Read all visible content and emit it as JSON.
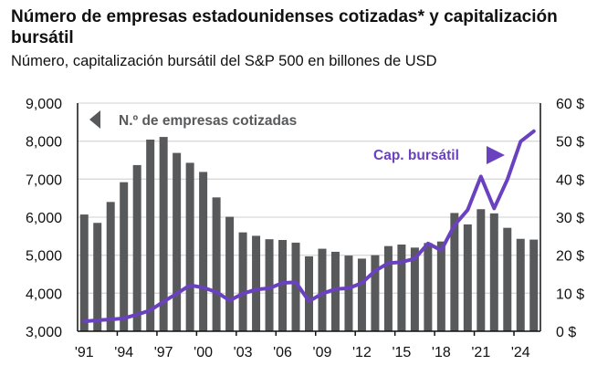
{
  "header": {
    "title": "Número de empresas estadounidenses cotizadas* y capitalización bursátil",
    "subtitle": "Número, capitalización bursátil del S&P 500 en billones de USD"
  },
  "colors": {
    "bars": "#58595b",
    "line": "#6a42c0",
    "grid": "#d9d9d9",
    "axis": "#111111"
  },
  "chart_data": {
    "type": "bar",
    "title": "Número de empresas estadounidenses cotizadas* y capitalización bursátil",
    "subtitle": "Número, capitalización bursátil del S&P 500 en billones de USD",
    "xlabel": "",
    "ylabel_left": "",
    "ylabel_right": "",
    "grid": true,
    "years": [
      1991,
      1992,
      1993,
      1994,
      1995,
      1996,
      1997,
      1998,
      1999,
      2000,
      2001,
      2002,
      2003,
      2004,
      2005,
      2006,
      2007,
      2008,
      2009,
      2010,
      2011,
      2012,
      2013,
      2014,
      2015,
      2016,
      2017,
      2018,
      2019,
      2020,
      2021,
      2022,
      2023,
      2024,
      2025
    ],
    "x_tick_labels": [
      {
        "year": 1991,
        "label": "'91"
      },
      {
        "year": 1994,
        "label": "'94"
      },
      {
        "year": 1997,
        "label": "'97"
      },
      {
        "year": 2000,
        "label": "'00"
      },
      {
        "year": 2003,
        "label": "'03"
      },
      {
        "year": 2006,
        "label": "'06"
      },
      {
        "year": 2009,
        "label": "'09"
      },
      {
        "year": 2012,
        "label": "'12"
      },
      {
        "year": 2015,
        "label": "'15"
      },
      {
        "year": 2018,
        "label": "'18"
      },
      {
        "year": 2021,
        "label": "'21"
      },
      {
        "year": 2024,
        "label": "'24"
      }
    ],
    "left_axis": {
      "ylim": [
        3000,
        9000
      ],
      "ticks": [
        3000,
        4000,
        5000,
        6000,
        7000,
        8000,
        9000
      ],
      "tick_labels": [
        "3,000",
        "4,000",
        "5,000",
        "6,000",
        "7,000",
        "8,000",
        "9,000"
      ]
    },
    "right_axis": {
      "ylim": [
        0,
        60
      ],
      "ticks": [
        0,
        10,
        20,
        30,
        40,
        50,
        60
      ],
      "tick_labels": [
        "0 $",
        "10 $",
        "20 $",
        "30 $",
        "40 $",
        "50 $",
        "60 $"
      ]
    },
    "series": [
      {
        "name": "N.º de empresas cotizadas",
        "type": "bar",
        "axis": "left",
        "values": [
          6070,
          5850,
          6400,
          6920,
          7370,
          8040,
          8110,
          7690,
          7430,
          7190,
          6520,
          6010,
          5600,
          5510,
          5420,
          5400,
          5330,
          4970,
          5170,
          5090,
          4990,
          4910,
          5000,
          5240,
          5280,
          5200,
          5320,
          5360,
          6110,
          5810,
          6210,
          6100,
          5720,
          5430,
          5410
        ]
      },
      {
        "name": "Cap. bursátil",
        "type": "line",
        "axis": "right",
        "values": [
          2.6,
          2.9,
          3.1,
          3.4,
          4.4,
          5.5,
          7.8,
          9.9,
          12.1,
          11.5,
          10.3,
          8.1,
          9.9,
          11.0,
          11.3,
          12.7,
          12.9,
          7.9,
          9.9,
          11.1,
          11.3,
          12.7,
          15.9,
          17.9,
          18.2,
          19.1,
          23.1,
          21.3,
          27.9,
          31.9,
          40.7,
          32.3,
          39.9,
          49.9,
          52.6
        ]
      }
    ],
    "annotations": [
      {
        "text": "N.º de empresas cotizadas",
        "arrow": "left",
        "refers_to_axis": "left",
        "placement": "top-left"
      },
      {
        "text": "Cap. bursátil",
        "arrow": "right",
        "refers_to_axis": "right",
        "placement": "upper-right"
      }
    ]
  }
}
